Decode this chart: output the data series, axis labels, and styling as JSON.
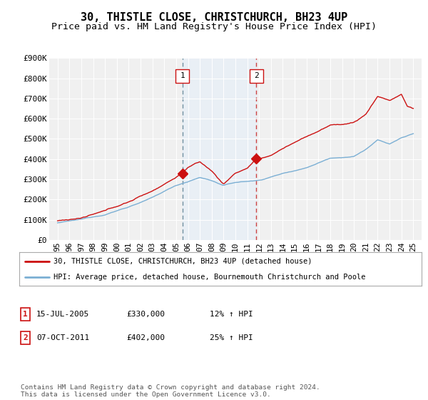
{
  "title": "30, THISTLE CLOSE, CHRISTCHURCH, BH23 4UP",
  "subtitle": "Price paid vs. HM Land Registry's House Price Index (HPI)",
  "ylim": [
    0,
    900000
  ],
  "yticks": [
    0,
    100000,
    200000,
    300000,
    400000,
    500000,
    600000,
    700000,
    800000,
    900000
  ],
  "ytick_labels": [
    "£0",
    "£100K",
    "£200K",
    "£300K",
    "£400K",
    "£500K",
    "£600K",
    "£700K",
    "£800K",
    "£900K"
  ],
  "hpi_color": "#7bafd4",
  "price_color": "#cc1111",
  "marker1_year": 2005.54,
  "marker1_value": 330000,
  "marker2_year": 2011.77,
  "marker2_value": 402000,
  "marker1_label": "1",
  "marker2_label": "2",
  "legend_line1": "30, THISTLE CLOSE, CHRISTCHURCH, BH23 4UP (detached house)",
  "legend_line2": "HPI: Average price, detached house, Bournemouth Christchurch and Poole",
  "table_row1": [
    "1",
    "15-JUL-2005",
    "£330,000",
    "12% ↑ HPI"
  ],
  "table_row2": [
    "2",
    "07-OCT-2011",
    "£402,000",
    "25% ↑ HPI"
  ],
  "footnote": "Contains HM Land Registry data © Crown copyright and database right 2024.\nThis data is licensed under the Open Government Licence v3.0.",
  "bg_color": "#ffffff",
  "plot_bg_color": "#f0f0f0",
  "grid_color": "#ffffff",
  "title_fontsize": 11,
  "subtitle_fontsize": 9.5,
  "tick_fontsize": 8,
  "vline1_color": "#7090a0",
  "vline2_color": "#cc4444",
  "shade_color": "#ddeeff"
}
